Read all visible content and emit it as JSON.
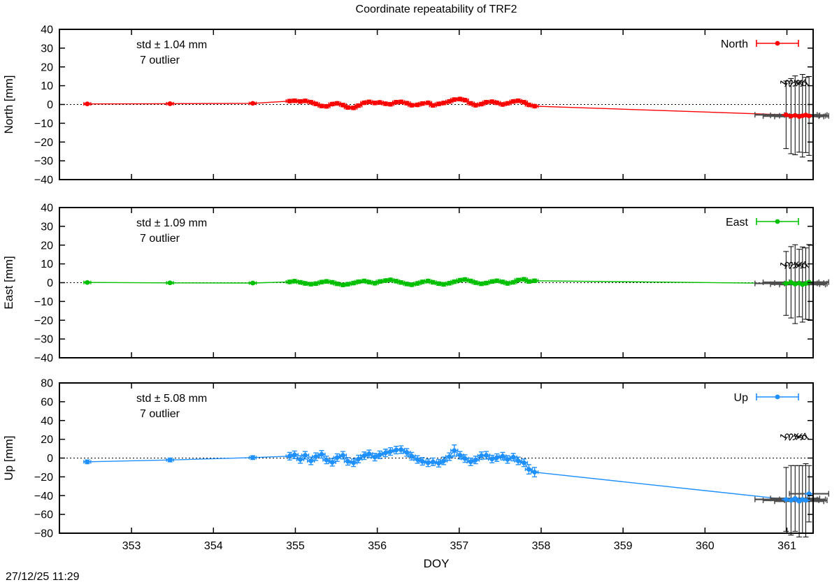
{
  "title": "Coordinate repeatability of TRF2",
  "timestamp": "27/12/25 11:29",
  "xlabel": "DOY",
  "colors": {
    "north": "#ff0000",
    "east": "#00c000",
    "up": "#1e90ff",
    "outlier_bar": "#4d4d4d",
    "frame": "#000000"
  },
  "chart_data": {
    "type": "line",
    "style": "errorbar-linespoints",
    "xlim": [
      352.12,
      361.32
    ],
    "xticks": [
      353,
      354,
      355,
      356,
      357,
      358,
      359,
      360,
      361
    ],
    "xlabel": "DOY",
    "grid": false,
    "legend_position": "top-right-inside",
    "panels": [
      {
        "id": "north",
        "ylabel": "North [mm]",
        "legend": "North",
        "std_label": "std ± 1.04 mm",
        "outlier_label": "7 outlier",
        "color": "#ff0000",
        "ylim": [
          -40,
          40
        ],
        "yticks": [
          40,
          30,
          20,
          10,
          0,
          -10,
          -20,
          -30,
          -40
        ],
        "points": [
          [
            352.46,
            0.3,
            0.5
          ],
          [
            353.47,
            0.4,
            0.5
          ],
          [
            354.48,
            0.6,
            0.5
          ],
          [
            354.93,
            1.8,
            0.9
          ],
          [
            354.99,
            2.0,
            0.9
          ],
          [
            355.06,
            1.6,
            0.9
          ],
          [
            355.12,
            1.9,
            0.9
          ],
          [
            355.19,
            1.2,
            0.9
          ],
          [
            355.25,
            0.3,
            0.9
          ],
          [
            355.32,
            -0.8,
            0.9
          ],
          [
            355.38,
            -1.0,
            0.9
          ],
          [
            355.45,
            0.2,
            0.9
          ],
          [
            355.51,
            0.6,
            0.9
          ],
          [
            355.58,
            -0.3,
            0.9
          ],
          [
            355.64,
            -1.6,
            0.9
          ],
          [
            355.71,
            -1.8,
            0.9
          ],
          [
            355.77,
            -0.6,
            0.9
          ],
          [
            355.84,
            0.9,
            0.9
          ],
          [
            355.9,
            1.4,
            0.9
          ],
          [
            355.97,
            0.8,
            0.9
          ],
          [
            356.03,
            1.1,
            0.9
          ],
          [
            356.1,
            0.4,
            0.9
          ],
          [
            356.16,
            0.1,
            0.9
          ],
          [
            356.23,
            1.2,
            0.9
          ],
          [
            356.29,
            1.4,
            0.9
          ],
          [
            356.36,
            0.7,
            0.9
          ],
          [
            356.42,
            -0.4,
            0.9
          ],
          [
            356.49,
            -0.2,
            0.9
          ],
          [
            356.55,
            0.5,
            0.9
          ],
          [
            356.62,
            0.9,
            0.9
          ],
          [
            356.68,
            -0.5,
            0.9
          ],
          [
            356.75,
            0.3,
            0.9
          ],
          [
            356.81,
            0.8,
            0.9
          ],
          [
            356.88,
            1.6,
            0.9
          ],
          [
            356.94,
            2.6,
            0.9
          ],
          [
            357.01,
            2.9,
            0.9
          ],
          [
            357.07,
            2.3,
            0.9
          ],
          [
            357.14,
            0.6,
            0.9
          ],
          [
            357.2,
            -0.4,
            0.9
          ],
          [
            357.27,
            0.2,
            0.9
          ],
          [
            357.33,
            1.2,
            0.9
          ],
          [
            357.4,
            1.5,
            0.9
          ],
          [
            357.46,
            0.9,
            0.9
          ],
          [
            357.53,
            0.0,
            0.9
          ],
          [
            357.59,
            0.6,
            0.9
          ],
          [
            357.66,
            1.6,
            0.9
          ],
          [
            357.72,
            2.0,
            0.9
          ],
          [
            357.79,
            1.2,
            0.9
          ],
          [
            357.85,
            -0.2,
            0.9
          ],
          [
            357.92,
            -0.9,
            0.9
          ]
        ],
        "outliers": [
          [
            360.99,
            -5.5,
            18,
            0.38
          ],
          [
            361.05,
            -6.2,
            20,
            0.34
          ],
          [
            361.1,
            -5.8,
            21,
            0.3
          ],
          [
            361.15,
            -6.4,
            19,
            0.3
          ],
          [
            361.19,
            -6.0,
            22,
            0.28
          ],
          [
            361.23,
            -5.6,
            20,
            0.26
          ],
          [
            361.27,
            -6.1,
            21,
            0.24
          ]
        ],
        "outlier_labels": [
          "1",
          "2",
          "3",
          "4",
          "5",
          "6",
          "7"
        ],
        "outlier_label_y": 9
      },
      {
        "id": "east",
        "ylabel": "East [mm]",
        "legend": "East",
        "std_label": "std ± 1.09 mm",
        "outlier_label": "7 outlier",
        "color": "#00c000",
        "ylim": [
          -40,
          40
        ],
        "yticks": [
          40,
          30,
          20,
          10,
          0,
          -10,
          -20,
          -30,
          -40
        ],
        "points": [
          [
            352.46,
            0.1,
            0.5
          ],
          [
            353.47,
            -0.1,
            0.5
          ],
          [
            354.48,
            -0.2,
            0.5
          ],
          [
            354.93,
            0.4,
            0.9
          ],
          [
            354.99,
            0.8,
            0.9
          ],
          [
            355.06,
            0.2,
            0.9
          ],
          [
            355.12,
            -0.4,
            0.9
          ],
          [
            355.19,
            -0.8,
            0.9
          ],
          [
            355.25,
            -0.5,
            0.9
          ],
          [
            355.32,
            0.3,
            0.9
          ],
          [
            355.38,
            0.7,
            0.9
          ],
          [
            355.45,
            0.2,
            0.9
          ],
          [
            355.51,
            -0.6,
            0.9
          ],
          [
            355.58,
            -1.2,
            0.9
          ],
          [
            355.64,
            -0.8,
            0.9
          ],
          [
            355.71,
            -0.2,
            0.9
          ],
          [
            355.77,
            0.5,
            0.9
          ],
          [
            355.84,
            0.9,
            0.9
          ],
          [
            355.9,
            0.3,
            0.9
          ],
          [
            355.97,
            -0.3,
            0.9
          ],
          [
            356.03,
            0.6,
            0.9
          ],
          [
            356.1,
            1.1,
            0.9
          ],
          [
            356.16,
            1.5,
            0.9
          ],
          [
            356.23,
            0.8,
            0.9
          ],
          [
            356.29,
            0.1,
            0.9
          ],
          [
            356.36,
            -0.7,
            0.9
          ],
          [
            356.42,
            -1.1,
            0.9
          ],
          [
            356.49,
            -0.4,
            0.9
          ],
          [
            356.55,
            0.4,
            0.9
          ],
          [
            356.62,
            0.9,
            0.9
          ],
          [
            356.68,
            0.2,
            0.9
          ],
          [
            356.75,
            -0.5,
            0.9
          ],
          [
            356.81,
            -0.9,
            0.9
          ],
          [
            356.88,
            -0.3,
            0.9
          ],
          [
            356.94,
            0.5,
            0.9
          ],
          [
            357.01,
            1.3,
            0.9
          ],
          [
            357.07,
            1.7,
            0.9
          ],
          [
            357.14,
            0.9,
            0.9
          ],
          [
            357.2,
            0.0,
            0.9
          ],
          [
            357.27,
            -0.6,
            0.9
          ],
          [
            357.33,
            -0.2,
            0.9
          ],
          [
            357.4,
            0.6,
            0.9
          ],
          [
            357.46,
            1.0,
            0.9
          ],
          [
            357.53,
            0.4,
            0.9
          ],
          [
            357.59,
            -0.4,
            0.9
          ],
          [
            357.66,
            0.2,
            0.9
          ],
          [
            357.72,
            1.4,
            0.9
          ],
          [
            357.79,
            1.8,
            0.9
          ],
          [
            357.85,
            0.6,
            0.9
          ],
          [
            357.92,
            1.0,
            0.9
          ]
        ],
        "outliers": [
          [
            360.99,
            -0.4,
            17,
            0.38
          ],
          [
            361.05,
            0.2,
            19,
            0.34
          ],
          [
            361.1,
            -0.8,
            21,
            0.3
          ],
          [
            361.15,
            -0.2,
            18,
            0.3
          ],
          [
            361.19,
            -1.0,
            20,
            0.28
          ],
          [
            361.23,
            -0.5,
            19,
            0.26
          ],
          [
            361.27,
            0.3,
            20,
            0.24
          ]
        ],
        "outlier_labels": [
          "1",
          "2",
          "3",
          "4",
          "5",
          "6",
          "7"
        ],
        "outlier_label_y": 7
      },
      {
        "id": "up",
        "ylabel": "Up [mm]",
        "legend": "Up",
        "std_label": "std ± 5.08 mm",
        "outlier_label": "7 outlier",
        "color": "#1e90ff",
        "ylim": [
          -80,
          80
        ],
        "yticks": [
          80,
          60,
          40,
          20,
          0,
          -20,
          -40,
          -60,
          -80
        ],
        "points": [
          [
            352.46,
            -4,
            2
          ],
          [
            353.47,
            -2,
            2
          ],
          [
            354.48,
            0.5,
            2
          ],
          [
            354.93,
            2.0,
            4
          ],
          [
            354.99,
            3.5,
            4
          ],
          [
            355.06,
            -1.5,
            4
          ],
          [
            355.12,
            3.0,
            4
          ],
          [
            355.19,
            -3.0,
            4
          ],
          [
            355.25,
            1.5,
            4
          ],
          [
            355.32,
            4.0,
            4
          ],
          [
            355.38,
            -2.0,
            4
          ],
          [
            355.45,
            -4.5,
            4
          ],
          [
            355.51,
            0.5,
            4
          ],
          [
            355.58,
            3.0,
            4
          ],
          [
            355.64,
            -3.5,
            4
          ],
          [
            355.71,
            -5.0,
            4
          ],
          [
            355.77,
            -1.0,
            4
          ],
          [
            355.84,
            2.5,
            4
          ],
          [
            355.9,
            4.5,
            4
          ],
          [
            355.97,
            1.0,
            4
          ],
          [
            356.03,
            3.5,
            4
          ],
          [
            356.1,
            5.5,
            4
          ],
          [
            356.16,
            7.0,
            4
          ],
          [
            356.23,
            8.5,
            4
          ],
          [
            356.29,
            9.0,
            4
          ],
          [
            356.36,
            6.0,
            4
          ],
          [
            356.42,
            2.0,
            4
          ],
          [
            356.49,
            -1.5,
            4
          ],
          [
            356.55,
            -3.5,
            4
          ],
          [
            356.62,
            -5.0,
            4
          ],
          [
            356.68,
            -4.0,
            4
          ],
          [
            356.75,
            -5.5,
            4
          ],
          [
            356.81,
            -3.0,
            4
          ],
          [
            356.88,
            1.5,
            4
          ],
          [
            356.94,
            8.0,
            6
          ],
          [
            357.01,
            3.0,
            4
          ],
          [
            357.07,
            -0.5,
            4
          ],
          [
            357.14,
            -4.0,
            4
          ],
          [
            357.2,
            -2.0,
            4
          ],
          [
            357.27,
            2.5,
            4
          ],
          [
            357.33,
            3.0,
            4
          ],
          [
            357.4,
            -1.0,
            4
          ],
          [
            357.46,
            0.5,
            4
          ],
          [
            357.53,
            2.0,
            4
          ],
          [
            357.59,
            -1.5,
            4
          ],
          [
            357.66,
            1.0,
            4
          ],
          [
            357.72,
            -3.0,
            4
          ],
          [
            357.79,
            -5.0,
            4
          ],
          [
            357.85,
            -12.0,
            5
          ],
          [
            357.92,
            -15.0,
            5
          ]
        ],
        "outliers": [
          [
            360.99,
            -44,
            34,
            0.38
          ],
          [
            361.05,
            -45,
            37,
            0.34
          ],
          [
            361.1,
            -43,
            35,
            0.3
          ],
          [
            361.15,
            -46,
            38,
            0.3
          ],
          [
            361.19,
            -44,
            36,
            0.28
          ],
          [
            361.23,
            -45,
            39,
            0.26
          ],
          [
            361.27,
            -38,
            30,
            0.24
          ]
        ],
        "outlier_labels": [
          "1",
          "2",
          "3",
          "4",
          "5",
          "6",
          "7"
        ],
        "outlier_label_y": 18
      }
    ]
  }
}
